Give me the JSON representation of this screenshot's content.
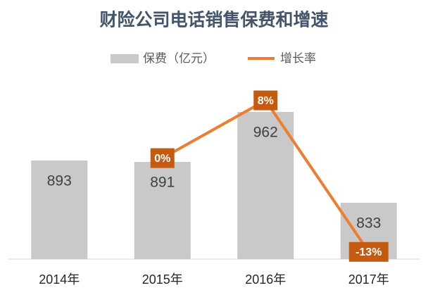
{
  "chart_data": {
    "type": "bar-line",
    "title": "财险公司电话销售保费和增速",
    "categories": [
      "2014年",
      "2015年",
      "2016年",
      "2017年"
    ],
    "series": [
      {
        "name": "保费（亿元）",
        "color": "#c9c9c9",
        "type": "bar",
        "values": [
          893,
          891,
          962,
          833
        ]
      },
      {
        "name": "增长率",
        "color": "#ed7d31",
        "type": "line",
        "axis": "y2",
        "values": [
          null,
          0,
          8,
          -13
        ],
        "value_labels": [
          null,
          "0%",
          "8%",
          "-13%"
        ]
      }
    ],
    "ylim": [
      753,
      1003
    ],
    "y2lim": [
      -14,
      10.4
    ],
    "legend": "top"
  }
}
